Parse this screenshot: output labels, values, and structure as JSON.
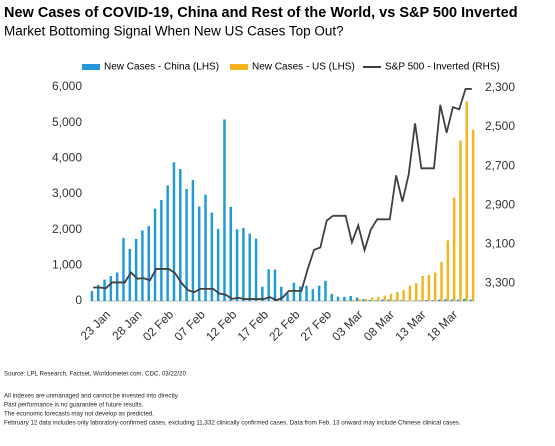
{
  "chart_data": {
    "type": "bar",
    "title": "New Cases of COVID-19, China and Rest of the World, vs S&P 500 Inverted",
    "subtitle": "Market Bottoming Signal When New US Cases Top Out?",
    "notes": [
      "Source: LPL Research, Factset, Worldometer.com, CDC, 03/22/20",
      "All indexes are unmanaged and cannot be invested into directly.",
      "Past performance is no guarantee of future results.",
      "The economic forecasts may not develop as predicted.",
      "February 12 data includes only laboratory-confirmed cases, excluding 11,332 clinically confirmed cases. Data from Feb. 13 onward may include Chinese clinical cases."
    ],
    "categories": [
      null,
      null,
      "23 Jan",
      null,
      null,
      null,
      null,
      "28 Jan",
      null,
      null,
      null,
      null,
      "02 Feb",
      null,
      null,
      null,
      null,
      "07 Feb",
      null,
      null,
      null,
      null,
      "12 Feb",
      null,
      null,
      null,
      null,
      "17 Feb",
      null,
      null,
      null,
      null,
      "22 Feb",
      null,
      null,
      null,
      null,
      "27 Feb",
      null,
      null,
      null,
      null,
      "03 Mar",
      null,
      null,
      null,
      null,
      "08 Mar",
      null,
      null,
      null,
      null,
      "13 Mar",
      null,
      null,
      null,
      null,
      "18 Mar",
      null,
      null,
      null
    ],
    "series": [
      {
        "name": "New Cases - China (LHS)",
        "type": "bar",
        "color": "#1f9ad6",
        "values": [
          280,
          450,
          600,
          700,
          800,
          1770,
          1460,
          1740,
          1980,
          2100,
          2590,
          2830,
          3240,
          3890,
          3700,
          3140,
          3390,
          2650,
          2980,
          2480,
          2020,
          5090,
          2640,
          2010,
          2050,
          1890,
          1750,
          400,
          890,
          880,
          400,
          210,
          510,
          410,
          430,
          330,
          430,
          570,
          200,
          120,
          120,
          140,
          100,
          50,
          30,
          20,
          40,
          40,
          20,
          20,
          10,
          10,
          20,
          30,
          20,
          40,
          50,
          40,
          40,
          60,
          40
        ]
      },
      {
        "name": "New Cases - US (LHS)",
        "type": "bar",
        "color": "#f2b31c",
        "values": [
          0,
          0,
          0,
          0,
          0,
          0,
          0,
          0,
          0,
          0,
          0,
          0,
          0,
          0,
          0,
          0,
          0,
          0,
          0,
          0,
          0,
          0,
          0,
          0,
          0,
          0,
          0,
          0,
          0,
          0,
          0,
          0,
          0,
          0,
          0,
          0,
          0,
          0,
          10,
          10,
          20,
          30,
          50,
          60,
          100,
          120,
          150,
          200,
          250,
          300,
          430,
          500,
          700,
          730,
          800,
          1100,
          1700,
          2900,
          4500,
          5600,
          4800
        ]
      },
      {
        "name": "S&P 500 - Inverted (RHS)",
        "type": "line",
        "axis": "y2",
        "color": "#404040",
        "values": [
          3321,
          3321,
          3325,
          3295,
          3295,
          3295,
          3244,
          3276,
          3273,
          3284,
          3226,
          3226,
          3226,
          3249,
          3298,
          3334,
          3345,
          3328,
          3328,
          3328,
          3352,
          3358,
          3379,
          3374,
          3380,
          3380,
          3380,
          3380,
          3370,
          3386,
          3373,
          3338,
          3338,
          3338,
          3226,
          3128,
          3116,
          2979,
          2954,
          2954,
          2954,
          3090,
          3003,
          3130,
          3024,
          2972,
          2972,
          2972,
          2747,
          2882,
          2741,
          2481,
          2711,
          2711,
          2711,
          2386,
          2529,
          2398,
          2409,
          2305,
          2305
        ]
      }
    ],
    "ylim": [
      0,
      6000
    ],
    "yticks": [
      0,
      {
        "value": 1000,
        "label": "1,000"
      },
      {
        "value": 2000,
        "label": "2,000"
      },
      {
        "value": 3000,
        "label": "3,000"
      },
      {
        "value": 4000,
        "label": "4,000"
      },
      {
        "value": 5000,
        "label": "5,000"
      },
      {
        "value": 6000,
        "label": "6,000"
      }
    ],
    "y2lim": [
      3390,
      2295
    ],
    "y2ticks": [
      {
        "value": 2300,
        "label": "2,300"
      },
      {
        "value": 2500,
        "label": "2,500"
      },
      {
        "value": 2700,
        "label": "2,700"
      },
      {
        "value": 2900,
        "label": "2,900"
      },
      {
        "value": 3100,
        "label": "3,100"
      },
      {
        "value": 3300,
        "label": "3,300"
      }
    ],
    "grid": false
  }
}
